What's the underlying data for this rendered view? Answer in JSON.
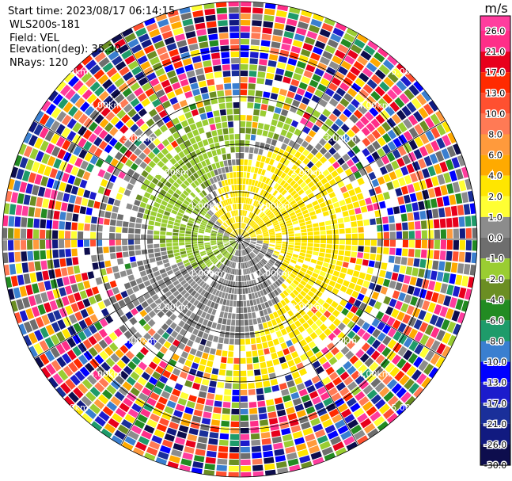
{
  "info": {
    "start_time": "Start time: 2023/08/17 06:14:15",
    "instrument": "WLS200s-181",
    "field": "Field: VEL",
    "elevation": "Elevation(deg): 35.30",
    "nrays": "NRays: 120"
  },
  "range_rings": [
    "1.00km",
    "2.00km",
    "3.00km",
    "4.00km",
    "5.00km"
  ],
  "colorbar": {
    "unit": "m/s",
    "ticks": [
      "26.0",
      "21.0",
      "17.0",
      "13.0",
      "10.0",
      "8.0",
      "6.0",
      "4.0",
      "2.0",
      "1.0",
      "0.0",
      "-1.0",
      "-2.0",
      "-4.0",
      "-6.0",
      "-8.0",
      "-10.0",
      "-13.0",
      "-17.0",
      "-21.0",
      "-26.0",
      "-30.0"
    ],
    "colors": [
      "#ff3d9e",
      "#ff2e88",
      "#e8001c",
      "#ff2a00",
      "#ff5030",
      "#ff7a55",
      "#ff9a3c",
      "#ffaa00",
      "#ffe600",
      "#ffff33",
      "#8c8c8c",
      "#6e6e6e",
      "#9acd32",
      "#6b8e23",
      "#228b22",
      "#1e9b6a",
      "#3a7fd0",
      "#0000ff",
      "#1c1ccc",
      "#1a2f9a",
      "#111a80",
      "#0d0d4d"
    ]
  }
}
